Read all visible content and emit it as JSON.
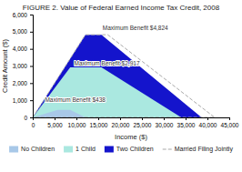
{
  "chart_data": {
    "type": "area",
    "title": "FIGURE 2. Value of Federal Earned Income Tax Credit, 2008",
    "xlabel": "Income ($)",
    "ylabel": "Credit Amount ($)",
    "xlim": [
      0,
      45000
    ],
    "ylim": [
      0,
      6000
    ],
    "xticks": [
      0,
      {
        "value": 5000,
        "label": "5,000"
      },
      {
        "value": 10000,
        "label": "10,000"
      },
      {
        "value": 15000,
        "label": "15,000"
      },
      {
        "value": 20000,
        "label": "20,000"
      },
      {
        "value": 25000,
        "label": "25,000"
      },
      {
        "value": 30000,
        "label": "30,000"
      },
      {
        "value": 35000,
        "label": "35,000"
      },
      {
        "value": 40000,
        "label": "40,000"
      },
      {
        "value": 45000,
        "label": "45,000"
      }
    ],
    "yticks": [
      0,
      {
        "value": 1000,
        "label": "1,000"
      },
      {
        "value": 2000,
        "label": "2,000"
      },
      {
        "value": 3000,
        "label": "3,000"
      },
      {
        "value": 4000,
        "label": "4,000"
      },
      {
        "value": 5000,
        "label": "5,000"
      },
      {
        "value": 6000,
        "label": "6,000"
      }
    ],
    "grid": false,
    "legend": "bottom",
    "series": [
      {
        "name": "No Children",
        "type": "area",
        "color": "#a8c8e8",
        "x": [
          0,
          5720,
          8580,
          12060
        ],
        "values": [
          0,
          438,
          438,
          0
        ]
      },
      {
        "name": "1 Child",
        "type": "area",
        "color": "#aae8e0",
        "x": [
          0,
          8580,
          15740,
          33995
        ],
        "values": [
          0,
          2917,
          2917,
          0
        ]
      },
      {
        "name": "Two Children",
        "type": "area",
        "color": "#1414cc",
        "x": [
          0,
          12060,
          15740,
          38646
        ],
        "values": [
          0,
          4824,
          4824,
          0
        ]
      },
      {
        "name": "Married Filing Jointly",
        "type": "line",
        "line_style": "dashed",
        "color": "#aaaaaa",
        "x": [
          0,
          12060,
          17160,
          41646
        ],
        "values": [
          0,
          4824,
          4824,
          0
        ]
      }
    ],
    "annotations": [
      {
        "text": "Maximum Benefit $4,824",
        "x": 16000,
        "y": 5100
      },
      {
        "text": "Maximum Benefit $2,917",
        "x": 9500,
        "y": 3050
      },
      {
        "text": "Maximum Benefit $438",
        "x": 2800,
        "y": 900
      }
    ]
  }
}
